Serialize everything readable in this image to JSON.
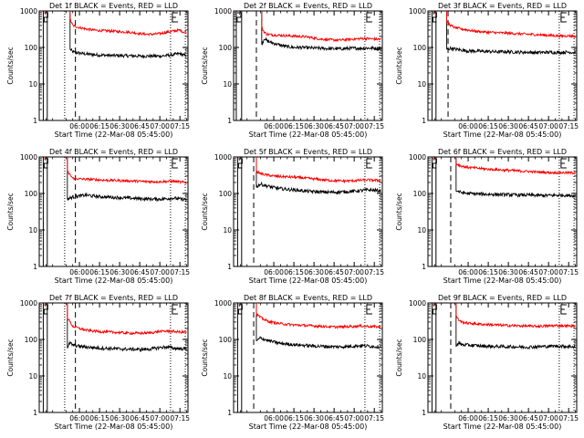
{
  "figure": {
    "xlabel": "Start Time (22-Mar-08 05:45:00)",
    "ylabel": "Counts/sec",
    "x_tick_labels": [
      "06:00",
      "06:15",
      "06:30",
      "06:45",
      "07:00",
      "07:15"
    ],
    "y_tick_labels": [
      "1",
      "10",
      "100",
      "1000"
    ]
  },
  "chart_data": [
    {
      "type": "line",
      "title": "Det 1f BLACK = Events, RED = LLD",
      "xlabel": "Start Time (22-Mar-08 05:45:00)",
      "ylabel": "Counts/sec",
      "y_scale": "log",
      "ylim": [
        1,
        1000
      ],
      "x_range_minutes": [
        -15,
        96
      ],
      "x_start": "05:45:00",
      "x": [
        8,
        10,
        15,
        20,
        25,
        30,
        35,
        40,
        45,
        50,
        55,
        60,
        65,
        70,
        75,
        80,
        85,
        90,
        92,
        95
      ],
      "series": [
        {
          "name": "BLACK = Events",
          "color": "#000000",
          "values": [
            90,
            75,
            70,
            66,
            64,
            62,
            61,
            60,
            60,
            59,
            59,
            58,
            58,
            58,
            58,
            60,
            63,
            68,
            62,
            60
          ]
        },
        {
          "name": "RED = LLD",
          "color": "#ff0000",
          "values": [
            600,
            400,
            350,
            320,
            300,
            290,
            285,
            280,
            270,
            265,
            255,
            240,
            230,
            230,
            240,
            260,
            280,
            300,
            270,
            260
          ]
        }
      ],
      "markers": {
        "solid": [
          -12,
          -9
        ],
        "dotted": [
          4,
          83,
          94
        ],
        "dashed": [
          12
        ],
        "E_at": 83
      }
    },
    {
      "type": "line",
      "title": "Det 2f BLACK = Events, RED = LLD",
      "xlabel": "Start Time (22-Mar-08 05:45:00)",
      "ylabel": "Counts/sec",
      "y_scale": "log",
      "ylim": [
        1,
        1000
      ],
      "x_range_minutes": [
        -15,
        96
      ],
      "x_start": "05:45:00",
      "x": [
        6,
        8,
        10,
        15,
        20,
        25,
        30,
        35,
        40,
        45,
        50,
        55,
        60,
        65,
        70,
        75,
        80,
        85,
        90,
        95
      ],
      "series": [
        {
          "name": "BLACK = Events",
          "color": "#000000",
          "values": [
            120,
            180,
            150,
            130,
            115,
            105,
            100,
            100,
            98,
            96,
            95,
            93,
            92,
            92,
            94,
            95,
            95,
            96,
            95,
            92
          ]
        },
        {
          "name": "RED = LLD",
          "color": "#ff0000",
          "values": [
            350,
            260,
            230,
            220,
            215,
            210,
            205,
            200,
            195,
            180,
            170,
            165,
            160,
            160,
            165,
            170,
            175,
            175,
            170,
            165
          ]
        }
      ],
      "markers": {
        "solid": [
          -13,
          -9
        ],
        "dotted": [
          83,
          94
        ],
        "dashed": [
          2
        ],
        "E_at": 83
      }
    },
    {
      "type": "line",
      "title": "Det 3f BLACK = Events, RED = LLD",
      "xlabel": "Start Time (22-Mar-08 05:45:00)",
      "ylabel": "Counts/sec",
      "y_scale": "log",
      "ylim": [
        1,
        1000
      ],
      "x_range_minutes": [
        -15,
        96
      ],
      "x_start": "05:45:00",
      "x": [
        -1,
        2,
        5,
        10,
        15,
        20,
        25,
        30,
        35,
        40,
        45,
        50,
        55,
        60,
        65,
        70,
        75,
        80,
        85,
        90,
        95
      ],
      "series": [
        {
          "name": "BLACK = Events",
          "color": "#000000",
          "values": [
            90,
            95,
            90,
            85,
            80,
            80,
            78,
            78,
            76,
            76,
            76,
            75,
            74,
            74,
            72,
            73,
            74,
            73,
            73,
            75,
            72
          ]
        },
        {
          "name": "RED = LLD",
          "color": "#ff0000",
          "values": [
            500,
            400,
            350,
            320,
            300,
            280,
            270,
            260,
            255,
            250,
            245,
            240,
            235,
            230,
            225,
            220,
            215,
            210,
            205,
            210,
            200
          ]
        }
      ],
      "markers": {
        "solid": [
          -12,
          -9
        ],
        "dotted": [
          83,
          94
        ],
        "dashed": [
          0
        ],
        "E_at": 83
      }
    },
    {
      "type": "line",
      "title": "Det 4f BLACK = Events, RED = LLD",
      "xlabel": "Start Time (22-Mar-08 05:45:00)",
      "ylabel": "Counts/sec",
      "y_scale": "log",
      "ylim": [
        1,
        1000
      ],
      "x_range_minutes": [
        -15,
        96
      ],
      "x_start": "05:45:00",
      "x": [
        6,
        10,
        15,
        20,
        25,
        30,
        35,
        40,
        45,
        50,
        55,
        60,
        65,
        70,
        75,
        80,
        85,
        90,
        95
      ],
      "series": [
        {
          "name": "BLACK = Events",
          "color": "#000000",
          "values": [
            70,
            80,
            85,
            90,
            85,
            82,
            80,
            78,
            77,
            75,
            74,
            72,
            71,
            70,
            70,
            72,
            75,
            70,
            68
          ]
        },
        {
          "name": "RED = LLD",
          "color": "#ff0000",
          "values": [
            400,
            260,
            250,
            245,
            240,
            235,
            230,
            228,
            225,
            222,
            220,
            215,
            212,
            210,
            210,
            212,
            215,
            205,
            200
          ]
        }
      ],
      "markers": {
        "solid": [
          -12,
          -9
        ],
        "dotted": [
          4,
          83,
          94
        ],
        "dashed": [
          12
        ],
        "E_at": 83
      }
    },
    {
      "type": "line",
      "title": "Det 5f BLACK = Events, RED = LLD",
      "xlabel": "Start Time (22-Mar-08 05:45:00)",
      "ylabel": "Counts/sec",
      "y_scale": "log",
      "ylim": [
        1,
        1000
      ],
      "x_range_minutes": [
        -15,
        96
      ],
      "x_start": "05:45:00",
      "x": [
        2,
        5,
        10,
        15,
        20,
        25,
        30,
        35,
        40,
        45,
        50,
        55,
        60,
        65,
        70,
        75,
        80,
        85,
        90,
        95
      ],
      "series": [
        {
          "name": "BLACK = Events",
          "color": "#000000",
          "values": [
            150,
            180,
            160,
            145,
            135,
            130,
            125,
            120,
            115,
            112,
            110,
            108,
            108,
            110,
            112,
            115,
            120,
            125,
            122,
            118
          ]
        },
        {
          "name": "RED = LLD",
          "color": "#ff0000",
          "values": [
            400,
            350,
            320,
            300,
            290,
            285,
            280,
            270,
            260,
            250,
            240,
            230,
            225,
            220,
            220,
            225,
            230,
            235,
            230,
            225
          ]
        }
      ],
      "markers": {
        "solid": [
          -12,
          -9
        ],
        "dotted": [
          83,
          94
        ],
        "dashed": [
          0
        ],
        "E_at": 83
      }
    },
    {
      "type": "line",
      "title": "Det 6f BLACK = Events, RED = LLD",
      "xlabel": "Start Time (22-Mar-08 05:45:00)",
      "ylabel": "Counts/sec",
      "y_scale": "log",
      "ylim": [
        1,
        1000
      ],
      "x_range_minutes": [
        -15,
        96
      ],
      "x_start": "05:45:00",
      "x": [
        6,
        10,
        15,
        20,
        25,
        30,
        35,
        40,
        45,
        50,
        55,
        60,
        65,
        70,
        75,
        80,
        85,
        90,
        95
      ],
      "series": [
        {
          "name": "BLACK = Events",
          "color": "#000000",
          "values": [
            120,
            105,
            100,
            98,
            96,
            95,
            94,
            93,
            92,
            91,
            90,
            90,
            89,
            88,
            88,
            89,
            90,
            88,
            86
          ]
        },
        {
          "name": "RED = LLD",
          "color": "#ff0000",
          "values": [
            650,
            560,
            520,
            500,
            480,
            460,
            450,
            440,
            430,
            420,
            410,
            400,
            390,
            380,
            375,
            370,
            370,
            368,
            365
          ]
        }
      ],
      "markers": {
        "solid": [
          -12,
          -9
        ],
        "dotted": [
          83,
          94
        ],
        "dashed": [
          2
        ],
        "E_at": 83
      }
    },
    {
      "type": "line",
      "title": "Det 7f BLACK = Events, RED = LLD",
      "xlabel": "Start Time (22-Mar-08 05:45:00)",
      "ylabel": "Counts/sec",
      "y_scale": "log",
      "ylim": [
        1,
        1000
      ],
      "x_range_minutes": [
        -15,
        96
      ],
      "x_start": "05:45:00",
      "x": [
        6,
        8,
        10,
        15,
        20,
        25,
        30,
        35,
        40,
        45,
        50,
        55,
        60,
        65,
        70,
        75,
        80,
        85,
        90,
        95
      ],
      "series": [
        {
          "name": "BLACK = Events",
          "color": "#000000",
          "values": [
            60,
            80,
            70,
            65,
            62,
            60,
            58,
            57,
            56,
            55,
            54,
            54,
            53,
            54,
            56,
            60,
            62,
            58,
            56,
            55
          ]
        },
        {
          "name": "RED = LLD",
          "color": "#ff0000",
          "values": [
            400,
            300,
            230,
            200,
            180,
            170,
            165,
            160,
            158,
            155,
            150,
            148,
            148,
            150,
            155,
            165,
            170,
            165,
            160,
            158
          ]
        }
      ],
      "markers": {
        "solid": [
          -12,
          -9
        ],
        "dotted": [
          4,
          83,
          94
        ],
        "dashed": [
          12
        ],
        "E_at": 83
      }
    },
    {
      "type": "line",
      "title": "Det 8f BLACK = Events, RED = LLD",
      "xlabel": "Start Time (22-Mar-08 05:45:00)",
      "ylabel": "Counts/sec",
      "y_scale": "log",
      "ylim": [
        1,
        1000
      ],
      "x_range_minutes": [
        -15,
        96
      ],
      "x_start": "05:45:00",
      "x": [
        2,
        5,
        10,
        15,
        20,
        25,
        30,
        35,
        40,
        45,
        50,
        55,
        60,
        65,
        70,
        75,
        80,
        85,
        90,
        95
      ],
      "series": [
        {
          "name": "BLACK = Events",
          "color": "#000000",
          "values": [
            90,
            110,
            95,
            85,
            78,
            75,
            72,
            70,
            68,
            66,
            65,
            64,
            63,
            63,
            64,
            66,
            68,
            66,
            64,
            62
          ]
        },
        {
          "name": "RED = LLD",
          "color": "#ff0000",
          "values": [
            500,
            400,
            320,
            290,
            270,
            260,
            250,
            245,
            240,
            235,
            230,
            225,
            220,
            220,
            225,
            230,
            235,
            230,
            225,
            220
          ]
        }
      ],
      "markers": {
        "solid": [
          -12,
          -9
        ],
        "dotted": [
          83,
          94
        ],
        "dashed": [
          0
        ],
        "E_at": 83
      }
    },
    {
      "type": "line",
      "title": "Det 9f BLACK = Events, RED = LLD",
      "xlabel": "Start Time (22-Mar-08 05:45:00)",
      "ylabel": "Counts/sec",
      "y_scale": "log",
      "ylim": [
        1,
        1000
      ],
      "x_range_minutes": [
        -15,
        96
      ],
      "x_start": "05:45:00",
      "x": [
        6,
        8,
        10,
        15,
        20,
        25,
        30,
        35,
        40,
        45,
        50,
        55,
        60,
        65,
        70,
        75,
        80,
        85,
        90,
        95
      ],
      "series": [
        {
          "name": "BLACK = Events",
          "color": "#000000",
          "values": [
            70,
            80,
            72,
            70,
            68,
            66,
            65,
            64,
            64,
            63,
            63,
            62,
            62,
            63,
            64,
            65,
            66,
            65,
            64,
            63
          ]
        },
        {
          "name": "RED = LLD",
          "color": "#ff0000",
          "values": [
            450,
            340,
            300,
            280,
            270,
            260,
            255,
            250,
            245,
            240,
            238,
            235,
            232,
            230,
            232,
            235,
            240,
            238,
            235,
            232
          ]
        }
      ],
      "markers": {
        "solid": [
          -12,
          -9
        ],
        "dotted": [
          83,
          94
        ],
        "dashed": [
          2
        ],
        "E_at": 83
      }
    }
  ]
}
